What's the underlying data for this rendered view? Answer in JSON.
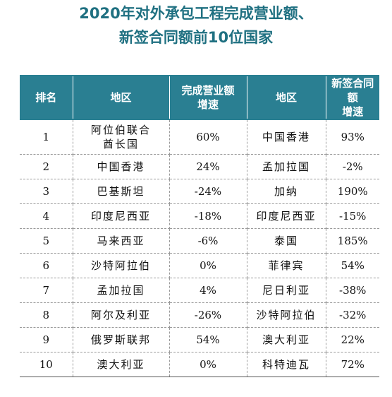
{
  "title": {
    "line1": "2020年对外承包工程完成营业额、",
    "line2": "新签合同额前10位国家"
  },
  "table": {
    "headers": {
      "rank": "排名",
      "region1": "地区",
      "growth1_line1": "完成营业额",
      "growth1_line2": "增速",
      "region2": "地区",
      "growth2_line1": "新签合同额",
      "growth2_line2": "增速"
    },
    "rows": [
      {
        "rank": "1",
        "region1_line1": "阿位伯联合",
        "region1_line2": "酋长国",
        "growth1": "60%",
        "region2": "中国香港",
        "growth2": "93%"
      },
      {
        "rank": "2",
        "region1": "中国香港",
        "growth1": "24%",
        "region2": "孟加拉国",
        "growth2": "-2%"
      },
      {
        "rank": "3",
        "region1": "巴基斯坦",
        "growth1": "-24%",
        "region2": "加纳",
        "growth2": "190%"
      },
      {
        "rank": "4",
        "region1": "印度尼西亚",
        "growth1": "-18%",
        "region2": "印度尼西亚",
        "growth2": "-15%"
      },
      {
        "rank": "5",
        "region1": "马来西亚",
        "growth1": "-6%",
        "region2": "泰国",
        "growth2": "185%"
      },
      {
        "rank": "6",
        "region1": "沙特阿拉伯",
        "growth1": "0%",
        "region2": "菲律宾",
        "growth2": "54%"
      },
      {
        "rank": "7",
        "region1": "孟加拉国",
        "growth1": "4%",
        "region2": "尼日利亚",
        "growth2": "-38%"
      },
      {
        "rank": "8",
        "region1": "阿尔及利亚",
        "growth1": "-26%",
        "region2": "沙特阿拉伯",
        "growth2": "-32%"
      },
      {
        "rank": "9",
        "region1": "俄罗斯联邦",
        "growth1": "54%",
        "region2": "澳大利亚",
        "growth2": "22%"
      },
      {
        "rank": "10",
        "region1": "澳大利亚",
        "growth1": "0%",
        "region2": "科特迪瓦",
        "growth2": "72%"
      }
    ]
  }
}
